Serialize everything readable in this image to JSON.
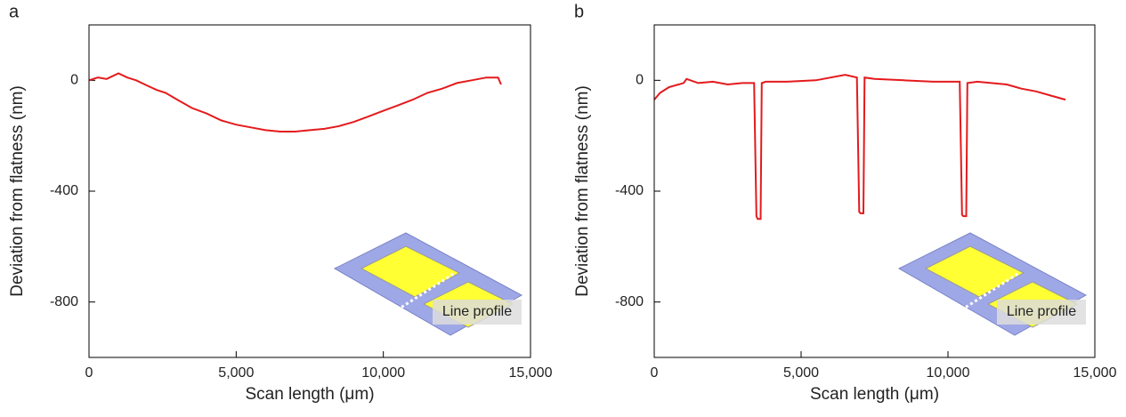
{
  "chart_data": [
    {
      "type": "line",
      "panel_label": "a",
      "xlabel": "Scan length (μm)",
      "ylabel": "Deviation from flatness (nm)",
      "x": [
        0,
        300,
        600,
        1000,
        1300,
        1600,
        2000,
        2300,
        2600,
        3000,
        3500,
        4000,
        4500,
        5000,
        5500,
        6000,
        6500,
        7000,
        7500,
        8000,
        8500,
        9000,
        9500,
        10000,
        10500,
        11000,
        11500,
        12000,
        12500,
        13000,
        13500,
        13900,
        14000
      ],
      "series": [
        {
          "name": "Line profile",
          "color": "#e41a1c",
          "values": [
            0,
            10,
            5,
            25,
            10,
            0,
            -20,
            -35,
            -45,
            -70,
            -100,
            -120,
            -145,
            -160,
            -170,
            -180,
            -185,
            -185,
            -180,
            -175,
            -165,
            -150,
            -130,
            -110,
            -90,
            -70,
            -45,
            -30,
            -10,
            0,
            10,
            10,
            -15
          ]
        }
      ],
      "xlim": [
        0,
        15000
      ],
      "ylim": [
        -1000,
        200
      ],
      "xticks": [
        0,
        {
          "value": 5000,
          "label": "5,000"
        },
        {
          "value": 10000,
          "label": "10,000"
        },
        {
          "value": 15000,
          "label": "15,000"
        }
      ],
      "yticks": [
        -800,
        -400,
        0
      ],
      "inset_label": "Line profile"
    },
    {
      "type": "line",
      "panel_label": "b",
      "xlabel": "Scan length (μm)",
      "ylabel": "Deviation from flatness (nm)",
      "x": [
        0,
        200,
        500,
        1000,
        1100,
        1500,
        2000,
        2500,
        3000,
        3400,
        3480,
        3520,
        3620,
        3660,
        3800,
        4500,
        5500,
        6500,
        6900,
        6980,
        7020,
        7120,
        7160,
        7500,
        8500,
        9500,
        10400,
        10480,
        10520,
        10620,
        10660,
        11000,
        12000,
        12500,
        13000,
        13500,
        14000
      ],
      "series": [
        {
          "name": "Line profile",
          "color": "#e41a1c",
          "values": [
            -70,
            -45,
            -25,
            -10,
            5,
            -10,
            -5,
            -15,
            -10,
            -10,
            -490,
            -500,
            -500,
            -10,
            -5,
            -5,
            0,
            20,
            10,
            -475,
            -480,
            -480,
            10,
            5,
            0,
            -5,
            -5,
            -485,
            -490,
            -490,
            -10,
            -5,
            -15,
            -30,
            -40,
            -55,
            -70
          ]
        }
      ],
      "xlim": [
        0,
        15000
      ],
      "ylim": [
        -1000,
        200
      ],
      "xticks": [
        0,
        {
          "value": 5000,
          "label": "5,000"
        },
        {
          "value": 10000,
          "label": "10,000"
        },
        {
          "value": 15000,
          "label": "15,000"
        }
      ],
      "yticks": [
        -800,
        -400,
        0
      ],
      "inset_label": "Line profile"
    }
  ]
}
